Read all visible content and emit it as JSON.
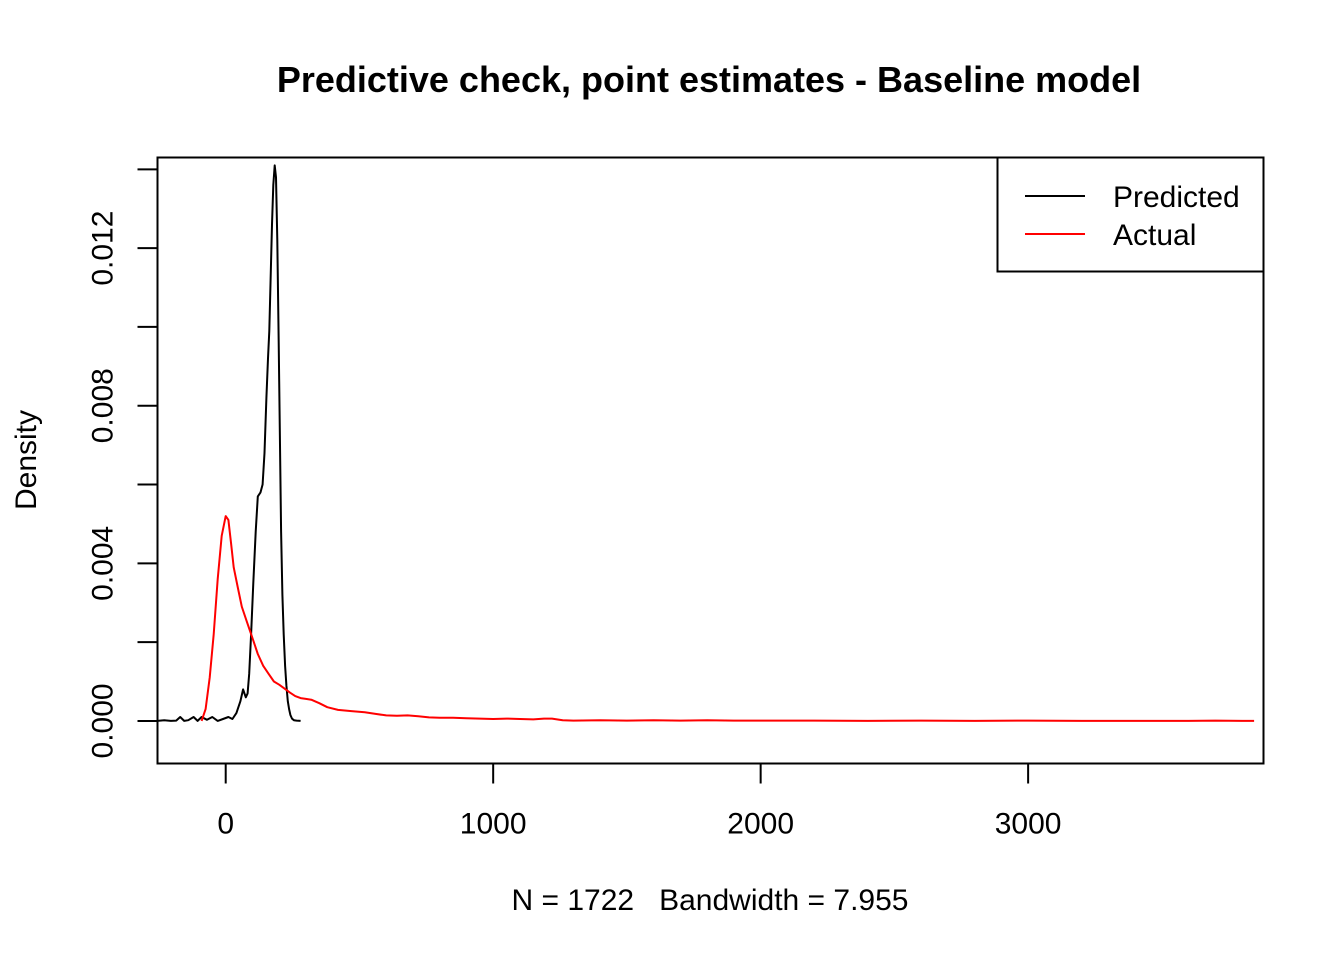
{
  "chart_data": {
    "type": "line",
    "title": "Predictive check, point estimates - Baseline model",
    "xlabel": "N = 1722   Bandwidth = 7.955",
    "ylabel": "Density",
    "xlim": [
      -255,
      3880
    ],
    "ylim": [
      -0.00108,
      0.0143
    ],
    "x_ticks": [
      0,
      1000,
      2000,
      3000
    ],
    "x_tick_labels": [
      "0",
      "1000",
      "2000",
      "3000"
    ],
    "y_ticks": [
      0.0,
      0.002,
      0.004,
      0.006,
      0.008,
      0.01,
      0.012,
      0.014
    ],
    "y_tick_labels": [
      "0.000",
      "",
      "0.004",
      "",
      "0.008",
      "",
      "0.012",
      ""
    ],
    "grid": false,
    "legend_position": "top-right",
    "legend": [
      {
        "name": "Predicted",
        "color": "#000000"
      },
      {
        "name": "Actual",
        "color": "#ff0000"
      }
    ],
    "series": [
      {
        "name": "Predicted",
        "color": "#000000",
        "x": [
          -255,
          -230,
          -205,
          -185,
          -170,
          -155,
          -140,
          -120,
          -105,
          -90,
          -70,
          -50,
          -30,
          -10,
          10,
          25,
          40,
          55,
          65,
          75,
          82,
          88,
          95,
          103,
          112,
          120,
          130,
          138,
          145,
          152,
          158,
          163,
          168,
          173,
          178,
          183,
          188,
          193,
          198,
          203,
          207,
          212,
          217,
          222,
          227,
          232,
          237,
          242,
          248,
          255,
          265,
          280
        ],
        "y": [
          0.0,
          2e-05,
          0.0,
          1e-05,
          0.0001,
          0.0,
          2e-05,
          0.0001,
          0.0,
          0.0001,
          3e-05,
          0.0001,
          0.0,
          5e-05,
          0.0001,
          5e-05,
          0.0002,
          0.0005,
          0.0008,
          0.0006,
          0.0007,
          0.0012,
          0.0022,
          0.0035,
          0.0048,
          0.0057,
          0.0058,
          0.006,
          0.0068,
          0.0082,
          0.0092,
          0.0099,
          0.0112,
          0.0126,
          0.0136,
          0.0141,
          0.0138,
          0.0122,
          0.0096,
          0.007,
          0.0048,
          0.0032,
          0.0022,
          0.0014,
          0.0009,
          0.0005,
          0.0003,
          0.00015,
          6e-05,
          2e-05,
          1e-05,
          0.0
        ]
      },
      {
        "name": "Actual",
        "color": "#ff0000",
        "x": [
          -90,
          -75,
          -60,
          -45,
          -30,
          -15,
          0,
          10,
          20,
          30,
          45,
          60,
          80,
          100,
          120,
          140,
          160,
          180,
          200,
          220,
          240,
          260,
          280,
          300,
          320,
          350,
          380,
          420,
          470,
          520,
          560,
          600,
          640,
          680,
          720,
          760,
          800,
          850,
          900,
          950,
          1000,
          1050,
          1100,
          1150,
          1190,
          1220,
          1260,
          1300,
          1400,
          1500,
          1600,
          1700,
          1800,
          1900,
          2000,
          2200,
          2400,
          2600,
          2800,
          3000,
          3200,
          3400,
          3600,
          3700,
          3800,
          3845
        ],
        "y": [
          0.0,
          0.0003,
          0.0011,
          0.0022,
          0.0036,
          0.0047,
          0.0052,
          0.0051,
          0.0045,
          0.0039,
          0.0034,
          0.0029,
          0.0025,
          0.0021,
          0.0017,
          0.0014,
          0.0012,
          0.001,
          0.00092,
          0.00082,
          0.00072,
          0.00063,
          0.00058,
          0.00056,
          0.00054,
          0.00045,
          0.00035,
          0.00028,
          0.00025,
          0.00022,
          0.00018,
          0.00014,
          0.00013,
          0.00014,
          0.00012,
          9e-05,
          8e-05,
          8e-05,
          7e-05,
          6e-05,
          5e-05,
          6e-05,
          5e-05,
          4e-05,
          6e-05,
          6e-05,
          2e-05,
          1e-05,
          2e-05,
          1e-05,
          2e-05,
          1e-05,
          2e-05,
          1e-05,
          1e-05,
          1e-05,
          0.0,
          1e-05,
          0.0,
          1e-05,
          0.0,
          0.0,
          0.0,
          1e-05,
          0.0,
          0.0
        ]
      }
    ]
  }
}
